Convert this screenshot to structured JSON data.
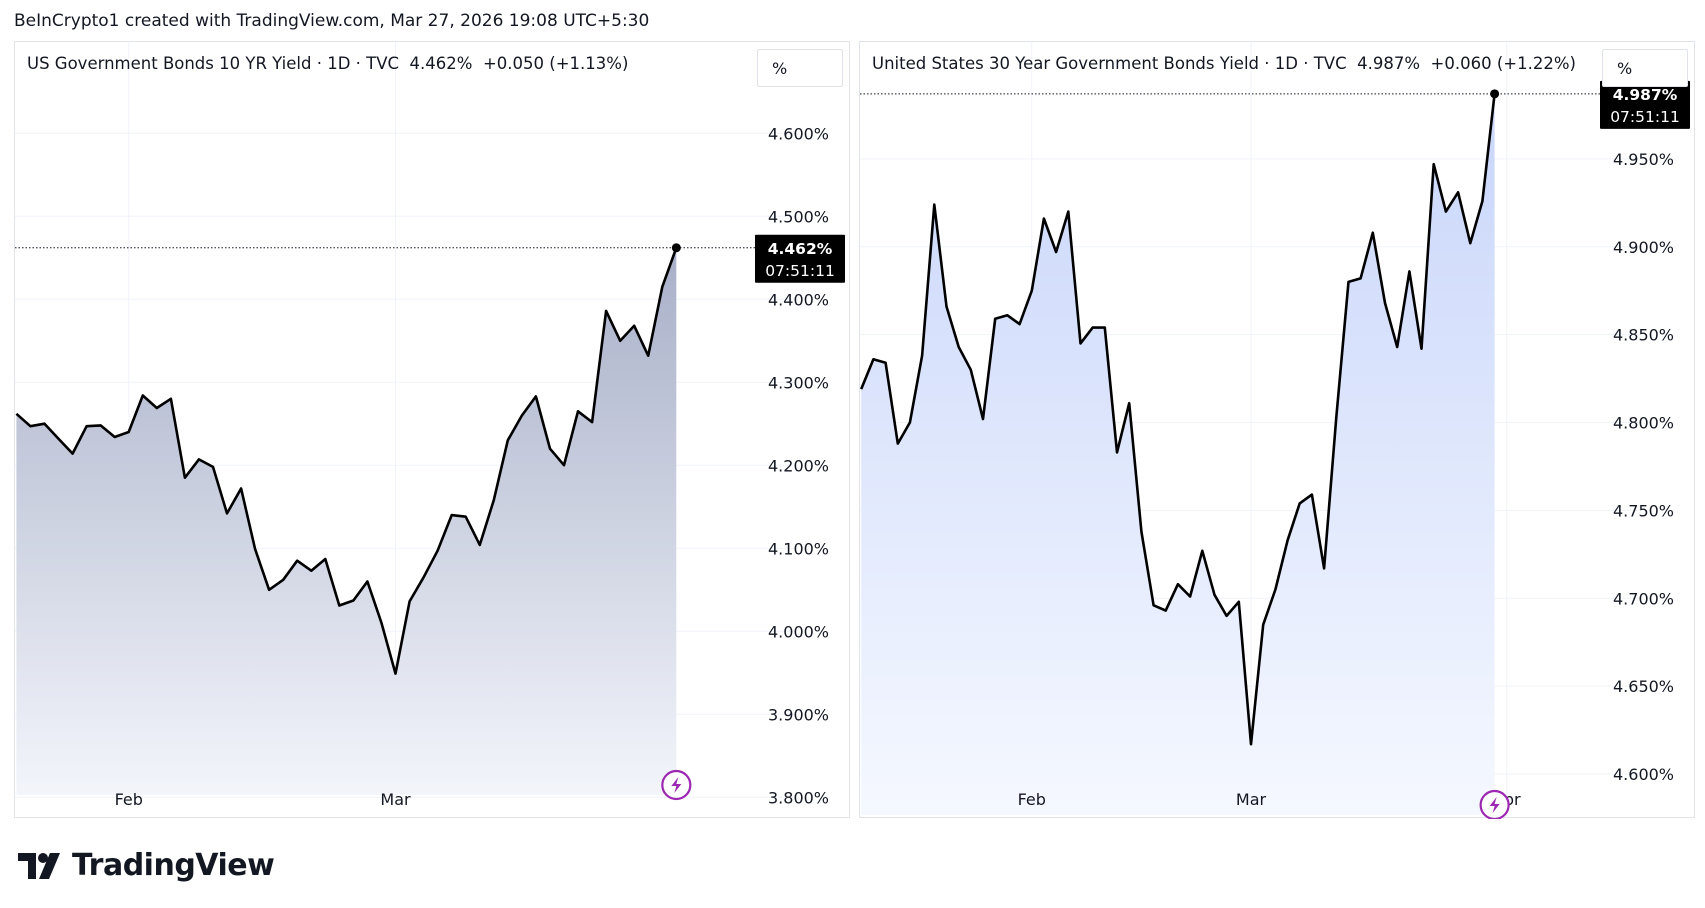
{
  "header": {
    "credit": "BeInCrypto1 created with TradingView.com, Mar 27, 2026 19:08 UTC+5:30"
  },
  "brand": {
    "name": "TradingView",
    "logo_icon": "tradingview-logo-icon"
  },
  "colors": {
    "line": "#000000",
    "grid": "#f0f3fa",
    "badge": "#000000",
    "left_fill_top": "#a8b0c8",
    "left_fill_bottom": "#f3f5fb",
    "right_fill_top": "#c9d6fa",
    "right_fill_bottom": "#f5f8ff",
    "lightning": "#9c27b0"
  },
  "chart_data": [
    {
      "type": "area",
      "legend": {
        "title": "US Government Bonds 10 YR Yield",
        "interval": "1D",
        "source": "TVC",
        "last": "4.462%",
        "change": "+0.050",
        "change_pct": "(+1.13%)"
      },
      "unit_label": "%",
      "ylim": [
        3.775,
        4.675
      ],
      "y_ticks": [
        3.8,
        3.9,
        4.0,
        4.1,
        4.2,
        4.3,
        4.4,
        4.5,
        4.6
      ],
      "y_tick_labels": [
        "3.800%",
        "3.900%",
        "4.000%",
        "4.100%",
        "4.200%",
        "4.300%",
        "4.400%",
        "4.500%",
        "4.600%"
      ],
      "x_ticks": [
        {
          "label": "Feb",
          "index": 8
        },
        {
          "label": "Mar",
          "index": 27
        }
      ],
      "x_range": [
        -0.1,
        53.6
      ],
      "values": [
        4.262,
        4.247,
        4.25,
        4.232,
        4.214,
        4.247,
        4.248,
        4.234,
        4.24,
        4.284,
        4.269,
        4.28,
        4.185,
        4.207,
        4.198,
        4.142,
        4.172,
        4.099,
        4.05,
        4.062,
        4.085,
        4.073,
        4.087,
        4.031,
        4.037,
        4.06,
        4.01,
        3.949,
        4.036,
        4.065,
        4.097,
        4.14,
        4.138,
        4.104,
        4.158,
        4.23,
        4.26,
        4.283,
        4.22,
        4.2,
        4.265,
        4.252,
        4.386,
        4.35,
        4.368,
        4.332,
        4.415,
        4.462
      ],
      "last_value_label": "4.462%",
      "countdown": "07:51:11"
    },
    {
      "type": "area",
      "legend": {
        "title": "United States 30 Year Government Bonds Yield",
        "interval": "1D",
        "source": "TVC",
        "last": "4.987%",
        "change": "+0.060",
        "change_pct": "(+1.22%)"
      },
      "unit_label": "%",
      "ylim": [
        4.575,
        5.0
      ],
      "y_ticks": [
        4.6,
        4.65,
        4.7,
        4.75,
        4.8,
        4.85,
        4.9,
        4.95
      ],
      "y_tick_labels": [
        "4.600%",
        "4.650%",
        "4.700%",
        "4.750%",
        "4.800%",
        "4.850%",
        "4.900%",
        "4.950%"
      ],
      "x_ticks": [
        {
          "label": "Feb",
          "index": 14
        },
        {
          "label": "Mar",
          "index": 32
        },
        {
          "label": "Apr",
          "index": 53
        }
      ],
      "x_range": [
        -0.1,
        61.8
      ],
      "values": [
        4.819,
        4.836,
        4.834,
        4.788,
        4.8,
        4.838,
        4.924,
        4.866,
        4.843,
        4.83,
        4.802,
        4.859,
        4.861,
        4.856,
        4.875,
        4.916,
        4.897,
        4.92,
        4.845,
        4.854,
        4.854,
        4.783,
        4.811,
        4.738,
        4.696,
        4.693,
        4.708,
        4.701,
        4.727,
        4.702,
        4.69,
        4.698,
        4.617,
        4.685,
        4.705,
        4.733,
        4.754,
        4.759,
        4.717,
        4.803,
        4.88,
        4.882,
        4.908,
        4.868,
        4.843,
        4.886,
        4.842,
        4.947,
        4.92,
        4.931,
        4.902,
        4.926,
        4.987
      ],
      "last_value_label": "4.987%",
      "countdown": "07:51:11"
    }
  ]
}
